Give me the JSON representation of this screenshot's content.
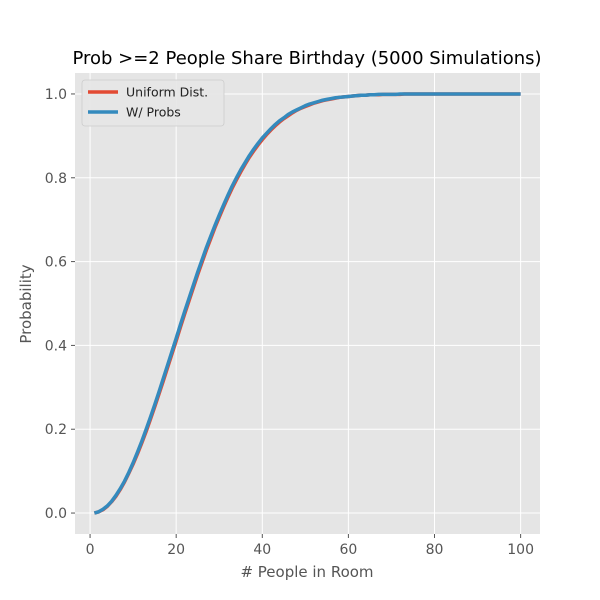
{
  "chart_data": {
    "type": "line",
    "title": "Prob >=2 People Share Birthday (5000 Simulations)",
    "xlabel": "# People in Room",
    "ylabel": "Probability",
    "xlim": [
      -3.5,
      104.5
    ],
    "ylim": [
      -0.05,
      1.05
    ],
    "xticks": [
      0,
      20,
      40,
      60,
      80,
      100
    ],
    "xtick_labels": [
      "0",
      "20",
      "40",
      "60",
      "80",
      "100"
    ],
    "yticks": [
      0.0,
      0.2,
      0.4,
      0.6,
      0.8,
      1.0
    ],
    "ytick_labels": [
      "0.0",
      "0.2",
      "0.4",
      "0.6",
      "0.8",
      "1.0"
    ],
    "grid": true,
    "legend_position": "upper left",
    "style": "ggplot",
    "x": [
      1,
      2,
      3,
      4,
      5,
      6,
      7,
      8,
      9,
      10,
      11,
      12,
      13,
      14,
      15,
      16,
      17,
      18,
      19,
      20,
      21,
      22,
      23,
      24,
      25,
      26,
      27,
      28,
      29,
      30,
      31,
      32,
      33,
      34,
      35,
      36,
      37,
      38,
      39,
      40,
      41,
      42,
      43,
      44,
      45,
      46,
      47,
      48,
      49,
      50,
      51,
      52,
      53,
      54,
      55,
      56,
      57,
      58,
      59,
      60,
      61,
      62,
      63,
      64,
      65,
      66,
      67,
      68,
      69,
      70,
      71,
      72,
      73,
      74,
      75,
      76,
      77,
      78,
      79,
      80,
      81,
      82,
      83,
      84,
      85,
      86,
      87,
      88,
      89,
      90,
      91,
      92,
      93,
      94,
      95,
      96,
      97,
      98,
      99,
      100
    ],
    "series": [
      {
        "name": "Uniform Dist.",
        "color": "#E24A33",
        "values": [
          0.0,
          0.003,
          0.008,
          0.016,
          0.027,
          0.04,
          0.056,
          0.074,
          0.095,
          0.117,
          0.141,
          0.167,
          0.194,
          0.223,
          0.253,
          0.284,
          0.315,
          0.347,
          0.379,
          0.411,
          0.444,
          0.476,
          0.507,
          0.538,
          0.569,
          0.598,
          0.627,
          0.654,
          0.681,
          0.706,
          0.73,
          0.753,
          0.775,
          0.795,
          0.814,
          0.832,
          0.849,
          0.864,
          0.878,
          0.891,
          0.903,
          0.914,
          0.924,
          0.933,
          0.941,
          0.948,
          0.955,
          0.961,
          0.966,
          0.97,
          0.974,
          0.978,
          0.981,
          0.984,
          0.986,
          0.988,
          0.99,
          0.992,
          0.993,
          0.994,
          0.995,
          0.996,
          0.997,
          0.997,
          0.998,
          0.998,
          0.998,
          0.999,
          0.999,
          0.999,
          0.999,
          0.999,
          1.0,
          1.0,
          1.0,
          1.0,
          1.0,
          1.0,
          1.0,
          1.0,
          1.0,
          1.0,
          1.0,
          1.0,
          1.0,
          1.0,
          1.0,
          1.0,
          1.0,
          1.0,
          1.0,
          1.0,
          1.0,
          1.0,
          1.0,
          1.0,
          1.0,
          1.0,
          1.0,
          1.0
        ]
      },
      {
        "name": "W/ Probs",
        "color": "#348ABD",
        "values": [
          0.0,
          0.003,
          0.009,
          0.017,
          0.028,
          0.042,
          0.058,
          0.076,
          0.097,
          0.12,
          0.145,
          0.171,
          0.199,
          0.228,
          0.258,
          0.289,
          0.321,
          0.353,
          0.385,
          0.417,
          0.45,
          0.482,
          0.513,
          0.544,
          0.575,
          0.604,
          0.633,
          0.66,
          0.686,
          0.711,
          0.735,
          0.758,
          0.78,
          0.8,
          0.819,
          0.836,
          0.853,
          0.868,
          0.882,
          0.895,
          0.906,
          0.917,
          0.927,
          0.936,
          0.943,
          0.951,
          0.957,
          0.962,
          0.967,
          0.972,
          0.976,
          0.979,
          0.982,
          0.985,
          0.987,
          0.989,
          0.991,
          0.992,
          0.993,
          0.994,
          0.995,
          0.996,
          0.997,
          0.997,
          0.998,
          0.998,
          0.999,
          0.999,
          0.999,
          0.999,
          0.999,
          1.0,
          1.0,
          1.0,
          1.0,
          1.0,
          1.0,
          1.0,
          1.0,
          1.0,
          1.0,
          1.0,
          1.0,
          1.0,
          1.0,
          1.0,
          1.0,
          1.0,
          1.0,
          1.0,
          1.0,
          1.0,
          1.0,
          1.0,
          1.0,
          1.0,
          1.0,
          1.0,
          1.0,
          1.0
        ]
      }
    ]
  }
}
